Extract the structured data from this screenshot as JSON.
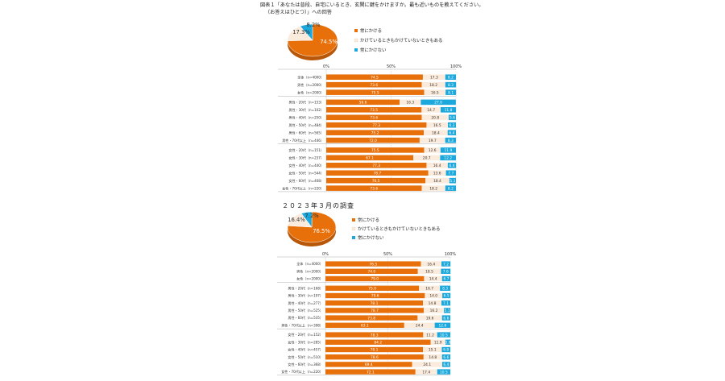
{
  "title_line1": "図表１「あなたは普段、自宅にいるとき、玄関に鍵をかけますか。最も近いものを教えてください。",
  "title_line2": "（お答えはひとつ）」への回答",
  "colors": {
    "orange": "#E8700A",
    "cream": "#FBEBDC",
    "blue": "#1BA8DC"
  },
  "chart_data": [
    {
      "type": "bar",
      "stacked": true,
      "orientation": "horizontal",
      "legend": [
        "常にかける",
        "かけているときもかけていないときもある",
        "常にかけない"
      ],
      "pie": [
        74.5,
        17.3,
        8.2
      ],
      "xticks": [
        "0%",
        "50%",
        "100%"
      ],
      "categories": [
        "全体（n=4000）",
        "男性（n=2000）",
        "女性（n=2000）",
        "男性・20代（n=153）",
        "男性・30代（n=102）",
        "男性・40代（n=250）",
        "男性・50代（n=484）",
        "男性・60代（n=565）",
        "男性・70代以上（n=446）",
        "女性・20代（n=151）",
        "女性・30代（n=237）",
        "女性・40代（n=440）",
        "女性・50代（n=544）",
        "女性・60代（n=408）",
        "女性・70代以上（n=220）"
      ],
      "series": [
        {
          "name": "常にかける",
          "values": [
            74.5,
            73.6,
            75.5,
            56.6,
            73.5,
            73.6,
            77.3,
            75.2,
            72.0,
            75.5,
            67.1,
            77.3,
            78.7,
            76.5,
            73.6
          ]
        },
        {
          "name": "かけているときもかけていないときもある",
          "values": [
            17.3,
            18.2,
            16.5,
            16.3,
            14.7,
            20.8,
            16.5,
            18.4,
            19.7,
            12.6,
            20.7,
            16.4,
            13.6,
            18.4,
            18.2
          ]
        },
        {
          "name": "常にかけない",
          "values": [
            8.2,
            8.3,
            8.1,
            27.0,
            11.8,
            5.6,
            6.2,
            6.4,
            8.3,
            11.9,
            12.2,
            6.4,
            7.7,
            5.1,
            8.2
          ]
        }
      ]
    },
    {
      "type": "bar",
      "stacked": true,
      "orientation": "horizontal",
      "title": "２０２３年３月の調査",
      "legend": [
        "常にかける",
        "かけているときもかけていないときもある",
        "常にかけない"
      ],
      "pie": [
        76.5,
        16.4,
        7.2
      ],
      "xticks": [
        "0%",
        "50%",
        "100%"
      ],
      "categories": [
        "全体（n=4000）",
        "男性（n=2000）",
        "女性（n=2000）",
        "男性・20代（n=168）",
        "男性・30代（n=197）",
        "男性・40代（n=277）",
        "男性・50代（n=525）",
        "男性・60代（n=535）",
        "男性・70代以上（n=398）",
        "女性・20代（n=152）",
        "女性・30代（n=285）",
        "女性・40代（n=457）",
        "女性・50代（n=510）",
        "女性・60代（n=368）",
        "女性・70代以上（n=220）"
      ],
      "series": [
        {
          "name": "常にかける",
          "values": [
            76.5,
            74.0,
            79.0,
            75.0,
            79.6,
            78.1,
            78.7,
            73.8,
            63.1,
            78.3,
            84.2,
            78.1,
            78.6,
            69.4,
            72.1
          ]
        },
        {
          "name": "かけているときもかけていないときもある",
          "values": [
            16.4,
            18.5,
            14.4,
            16.7,
            14.0,
            14.8,
            16.2,
            19.6,
            24.4,
            11.2,
            11.9,
            15.1,
            14.8,
            24.1,
            17.4
          ]
        },
        {
          "name": "常にかけない",
          "values": [
            7.2,
            7.6,
            6.7,
            8.3,
            6.5,
            7.1,
            5.1,
            6.6,
            12.6,
            10.5,
            3.9,
            6.8,
            6.6,
            6.4,
            10.5
          ]
        }
      ]
    }
  ]
}
